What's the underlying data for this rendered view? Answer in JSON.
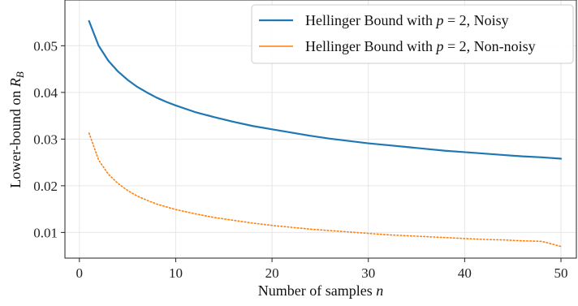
{
  "chart_data": {
    "type": "line",
    "xlabel": "Number of samples n",
    "ylabel": "Lower-bound on R_B",
    "xlim": [
      -1.5,
      51.6
    ],
    "ylim": [
      0.0045,
      0.0598
    ],
    "grid": true,
    "legend_position": "top-right",
    "x_ticks": [
      0,
      10,
      20,
      30,
      40,
      50
    ],
    "x_tick_labels": [
      "0",
      "10",
      "20",
      "30",
      "40",
      "50"
    ],
    "y_ticks": [
      0.01,
      0.02,
      0.03,
      0.04,
      0.05
    ],
    "y_tick_labels": [
      "0.01",
      "0.02",
      "0.03",
      "0.04",
      "0.05"
    ],
    "series": [
      {
        "name": "Hellinger Bound with p = 2, Noisy",
        "color": "#1f77b4",
        "style": "solid",
        "x": [
          1,
          2,
          3,
          4,
          5,
          6,
          7,
          8,
          9,
          10,
          12,
          14,
          16,
          18,
          20,
          22,
          24,
          26,
          28,
          30,
          32,
          34,
          36,
          38,
          40,
          42,
          44,
          46,
          48,
          50
        ],
        "y": [
          0.0553,
          0.05,
          0.0468,
          0.0445,
          0.0427,
          0.0412,
          0.04,
          0.0389,
          0.038,
          0.0372,
          0.0358,
          0.0347,
          0.0337,
          0.0328,
          0.0321,
          0.0314,
          0.0307,
          0.0301,
          0.0296,
          0.0291,
          0.0287,
          0.0283,
          0.0279,
          0.0275,
          0.0272,
          0.0269,
          0.0266,
          0.0263,
          0.0261,
          0.0258
        ]
      },
      {
        "name": "Hellinger Bound with p = 2, Non-noisy",
        "color": "#ff7f0e",
        "style": "dotted",
        "x": [
          1,
          2,
          3,
          4,
          5,
          6,
          7,
          8,
          9,
          10,
          12,
          14,
          16,
          18,
          20,
          22,
          24,
          26,
          28,
          30,
          32,
          34,
          36,
          38,
          40,
          42,
          44,
          46,
          48,
          50
        ],
        "y": [
          0.0313,
          0.0255,
          0.0225,
          0.0205,
          0.019,
          0.0178,
          0.0169,
          0.0161,
          0.0155,
          0.0149,
          0.014,
          0.0132,
          0.0126,
          0.012,
          0.0115,
          0.0111,
          0.0107,
          0.0104,
          0.0101,
          0.0098,
          0.0095,
          0.0093,
          0.0091,
          0.0089,
          0.0087,
          0.0085,
          0.0084,
          0.0082,
          0.0081,
          0.007
        ]
      }
    ]
  }
}
